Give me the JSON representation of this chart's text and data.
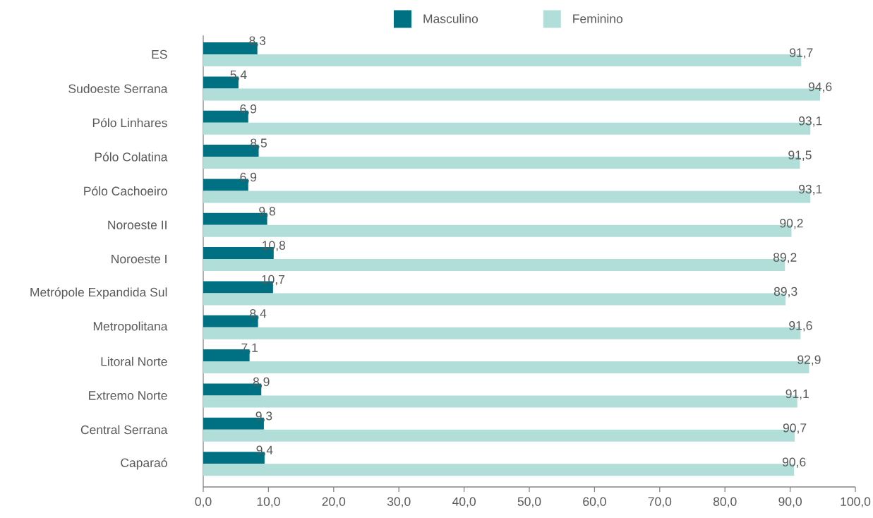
{
  "chart_data": {
    "type": "bar",
    "orientation": "horizontal",
    "categories": [
      "ES",
      "Sudoeste Serrana",
      "Pólo Linhares",
      "Pólo Colatina",
      "Pólo Cachoeiro",
      "Noroeste II",
      "Noroeste I",
      "Metrópole Expandida Sul",
      "Metropolitana",
      "Litoral Norte",
      "Extremo Norte",
      "Central Serrana",
      "Caparaó"
    ],
    "series": [
      {
        "name": "Masculino",
        "color": "#007083",
        "values": [
          8.3,
          5.4,
          6.9,
          8.5,
          6.9,
          9.8,
          10.8,
          10.7,
          8.4,
          7.1,
          8.9,
          9.3,
          9.4
        ],
        "value_labels": [
          "8,3",
          "5,4",
          "6,9",
          "8,5",
          "6,9",
          "9,8",
          "10,8",
          "10,7",
          "8,4",
          "7,1",
          "8,9",
          "9,3",
          "9,4"
        ]
      },
      {
        "name": "Feminino",
        "color": "#b2ded9",
        "values": [
          91.7,
          94.6,
          93.1,
          91.5,
          93.1,
          90.2,
          89.2,
          89.3,
          91.6,
          92.9,
          91.1,
          90.7,
          90.6
        ],
        "value_labels": [
          "91,7",
          "94,6",
          "93,1",
          "91,5",
          "93,1",
          "90,2",
          "89,2",
          "89,3",
          "91,6",
          "92,9",
          "91,1",
          "90,7",
          "90,6"
        ]
      }
    ],
    "xlim": [
      0,
      100
    ],
    "xticks": [
      {
        "value": 0,
        "label": "0,0"
      },
      {
        "value": 10,
        "label": "10,0"
      },
      {
        "value": 20,
        "label": "20,0"
      },
      {
        "value": 30,
        "label": "30,0"
      },
      {
        "value": 40,
        "label": "40,0"
      },
      {
        "value": 50,
        "label": "50,0"
      },
      {
        "value": 60,
        "label": "60,0"
      },
      {
        "value": 70,
        "label": "70,0"
      },
      {
        "value": 80,
        "label": "80,0"
      },
      {
        "value": 90,
        "label": "90,0"
      },
      {
        "value": 100,
        "label": "100,0"
      }
    ],
    "legend": "top"
  }
}
